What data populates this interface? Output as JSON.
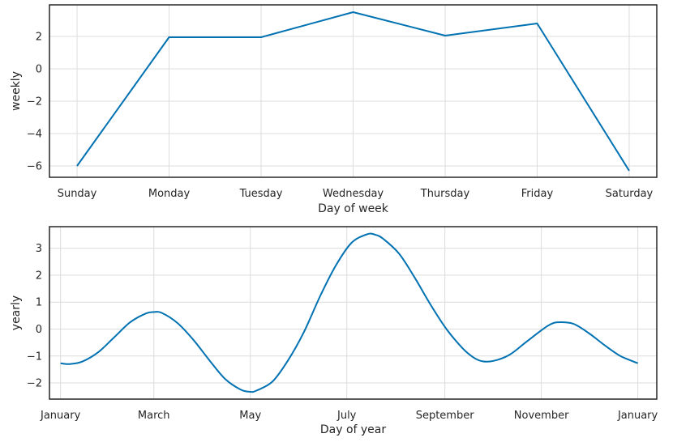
{
  "chart_data": [
    {
      "type": "line",
      "xlabel": "Day of week",
      "ylabel": "weekly",
      "categories": [
        "Sunday",
        "Monday",
        "Tuesday",
        "Wednesday",
        "Thursday",
        "Friday",
        "Saturday"
      ],
      "series": [
        {
          "values": [
            -6.0,
            1.95,
            1.95,
            3.5,
            2.05,
            2.8,
            -6.3
          ]
        }
      ],
      "yticks": [
        2,
        0,
        -2,
        -4,
        -6
      ],
      "ytick_labels": [
        "2",
        "0",
        "−2",
        "−4",
        "−6"
      ],
      "ylim": [
        -6.7,
        3.95
      ],
      "grid": true,
      "color": "#0072B2"
    },
    {
      "type": "line",
      "xlabel": "Day of year",
      "ylabel": "yearly",
      "xtick_labels": [
        "January",
        "March",
        "May",
        "July",
        "September",
        "November",
        "January"
      ],
      "xtick_day": [
        1,
        60,
        121,
        182,
        244,
        305,
        366
      ],
      "xlim": [
        -6,
        378
      ],
      "series": [
        {
          "day": [
            1,
            7,
            15,
            25,
            35,
            45,
            55,
            60,
            65,
            75,
            85,
            95,
            105,
            115,
            121,
            125,
            135,
            145,
            155,
            165,
            175,
            185,
            195,
            200,
            205,
            215,
            225,
            235,
            245,
            255,
            262,
            268,
            275,
            285,
            295,
            305,
            310,
            315,
            325,
            335,
            345,
            355,
            366
          ],
          "values": [
            -1.27,
            -1.3,
            -1.2,
            -0.85,
            -0.3,
            0.25,
            0.58,
            0.63,
            0.6,
            0.22,
            -0.4,
            -1.15,
            -1.85,
            -2.25,
            -2.33,
            -2.28,
            -1.95,
            -1.15,
            -0.1,
            1.2,
            2.35,
            3.2,
            3.52,
            3.5,
            3.35,
            2.8,
            1.9,
            0.9,
            0.0,
            -0.7,
            -1.05,
            -1.2,
            -1.18,
            -0.95,
            -0.5,
            -0.05,
            0.15,
            0.25,
            0.2,
            -0.15,
            -0.6,
            -1.0,
            -1.27
          ]
        }
      ],
      "yticks": [
        3,
        2,
        1,
        0,
        -1,
        -2
      ],
      "ytick_labels": [
        "3",
        "2",
        "1",
        "0",
        "−1",
        "−2"
      ],
      "ylim": [
        -2.6,
        3.8
      ],
      "grid": true,
      "color": "#0072B2"
    }
  ]
}
